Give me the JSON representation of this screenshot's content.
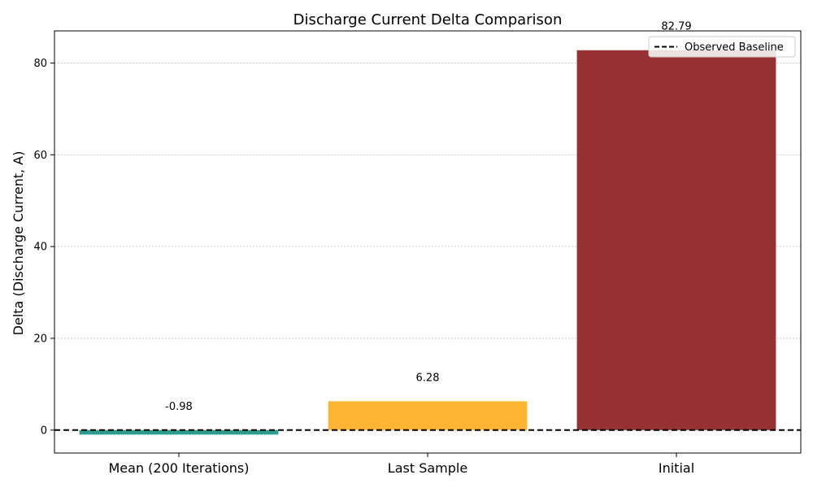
{
  "chart_data": {
    "type": "bar",
    "title": "Discharge Current Delta Comparison",
    "xlabel": "",
    "ylabel": "Delta (Discharge Current, A)",
    "categories": [
      "Mean (200 Iterations)",
      "Last Sample",
      "Initial"
    ],
    "values": [
      -0.98,
      6.28,
      82.79
    ],
    "value_labels": [
      "-0.98",
      "6.28",
      "82.79"
    ],
    "colors": [
      "#2a9d8f",
      "#ffb533",
      "#963234"
    ],
    "ylim": [
      -5,
      87
    ],
    "yticks": [
      0,
      20,
      40,
      60,
      80
    ],
    "ytick_labels": [
      "0",
      "20",
      "40",
      "60",
      "80"
    ],
    "grid": "horizontal dotted",
    "baseline": {
      "value": 0,
      "label": "Observed Baseline",
      "style": "dashed",
      "color": "#000000"
    },
    "legend": {
      "position": "top-right",
      "entries": [
        "Observed Baseline"
      ]
    }
  }
}
